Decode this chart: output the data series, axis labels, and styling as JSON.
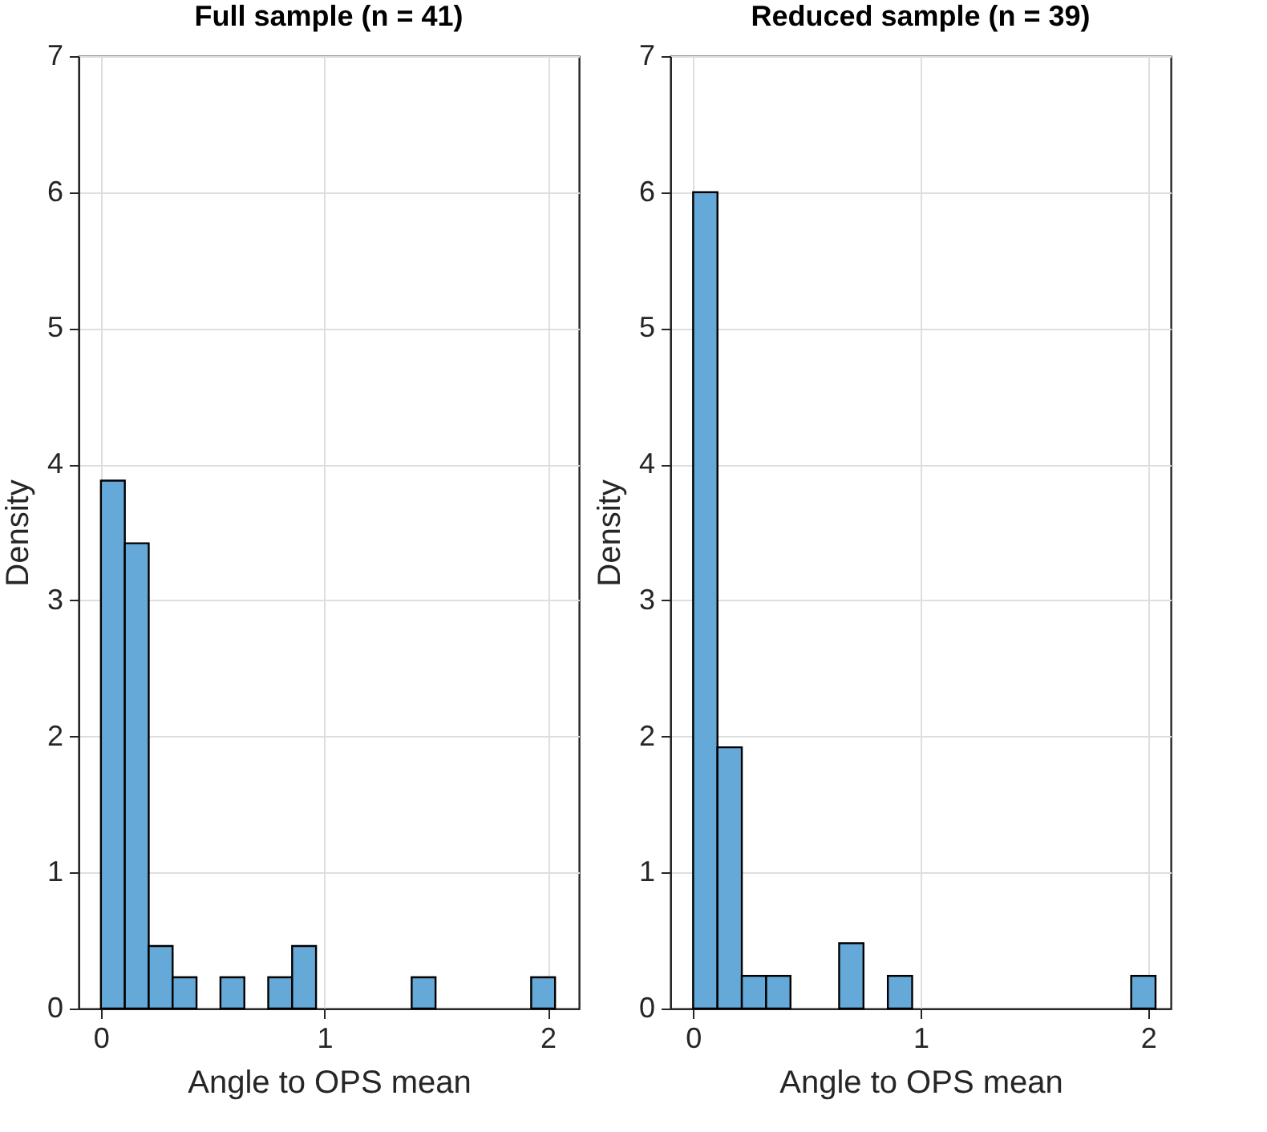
{
  "chart_data": [
    {
      "type": "histogram",
      "title": "Full sample (n = 41)",
      "xlabel": "Angle to OPS mean",
      "ylabel": "Density",
      "color": "#65a9d8",
      "bins": [
        0,
        0.107,
        0.214,
        0.321,
        0.428,
        0.535,
        0.642,
        0.749,
        0.856,
        0.963,
        1.07,
        1.177,
        1.284,
        1.391,
        1.498,
        1.605,
        1.712,
        1.819,
        1.926,
        2.033
      ],
      "values": [
        3.88,
        3.42,
        0.46,
        0.23,
        0,
        0.23,
        0,
        0.23,
        0.46,
        0,
        0,
        0,
        0,
        0.23,
        0,
        0,
        0,
        0,
        0.23
      ],
      "xlim": [
        -0.1,
        2.14
      ],
      "xticks": [
        0,
        1,
        2
      ],
      "ylim": [
        0,
        7
      ],
      "yticks": [
        0,
        1,
        2,
        3,
        4,
        5,
        6,
        7
      ],
      "grid": true
    },
    {
      "type": "histogram",
      "title": "Reduced sample (n = 39)",
      "xlabel": "Angle to OPS mean",
      "ylabel": "Density",
      "color": "#65a9d8",
      "bins": [
        0,
        0.107,
        0.214,
        0.321,
        0.428,
        0.535,
        0.642,
        0.749,
        0.856,
        0.963,
        1.07,
        1.177,
        1.284,
        1.391,
        1.498,
        1.605,
        1.712,
        1.819,
        1.926,
        2.033
      ],
      "values": [
        6.0,
        1.92,
        0.24,
        0.24,
        0,
        0,
        0.48,
        0,
        0.24,
        0,
        0,
        0,
        0,
        0,
        0,
        0,
        0,
        0,
        0.24
      ],
      "xlim": [
        -0.1,
        2.1
      ],
      "xticks": [
        0,
        1,
        2
      ],
      "ylim": [
        0,
        7
      ],
      "yticks": [
        0,
        1,
        2,
        3,
        4,
        5,
        6,
        7
      ],
      "grid": true
    }
  ]
}
